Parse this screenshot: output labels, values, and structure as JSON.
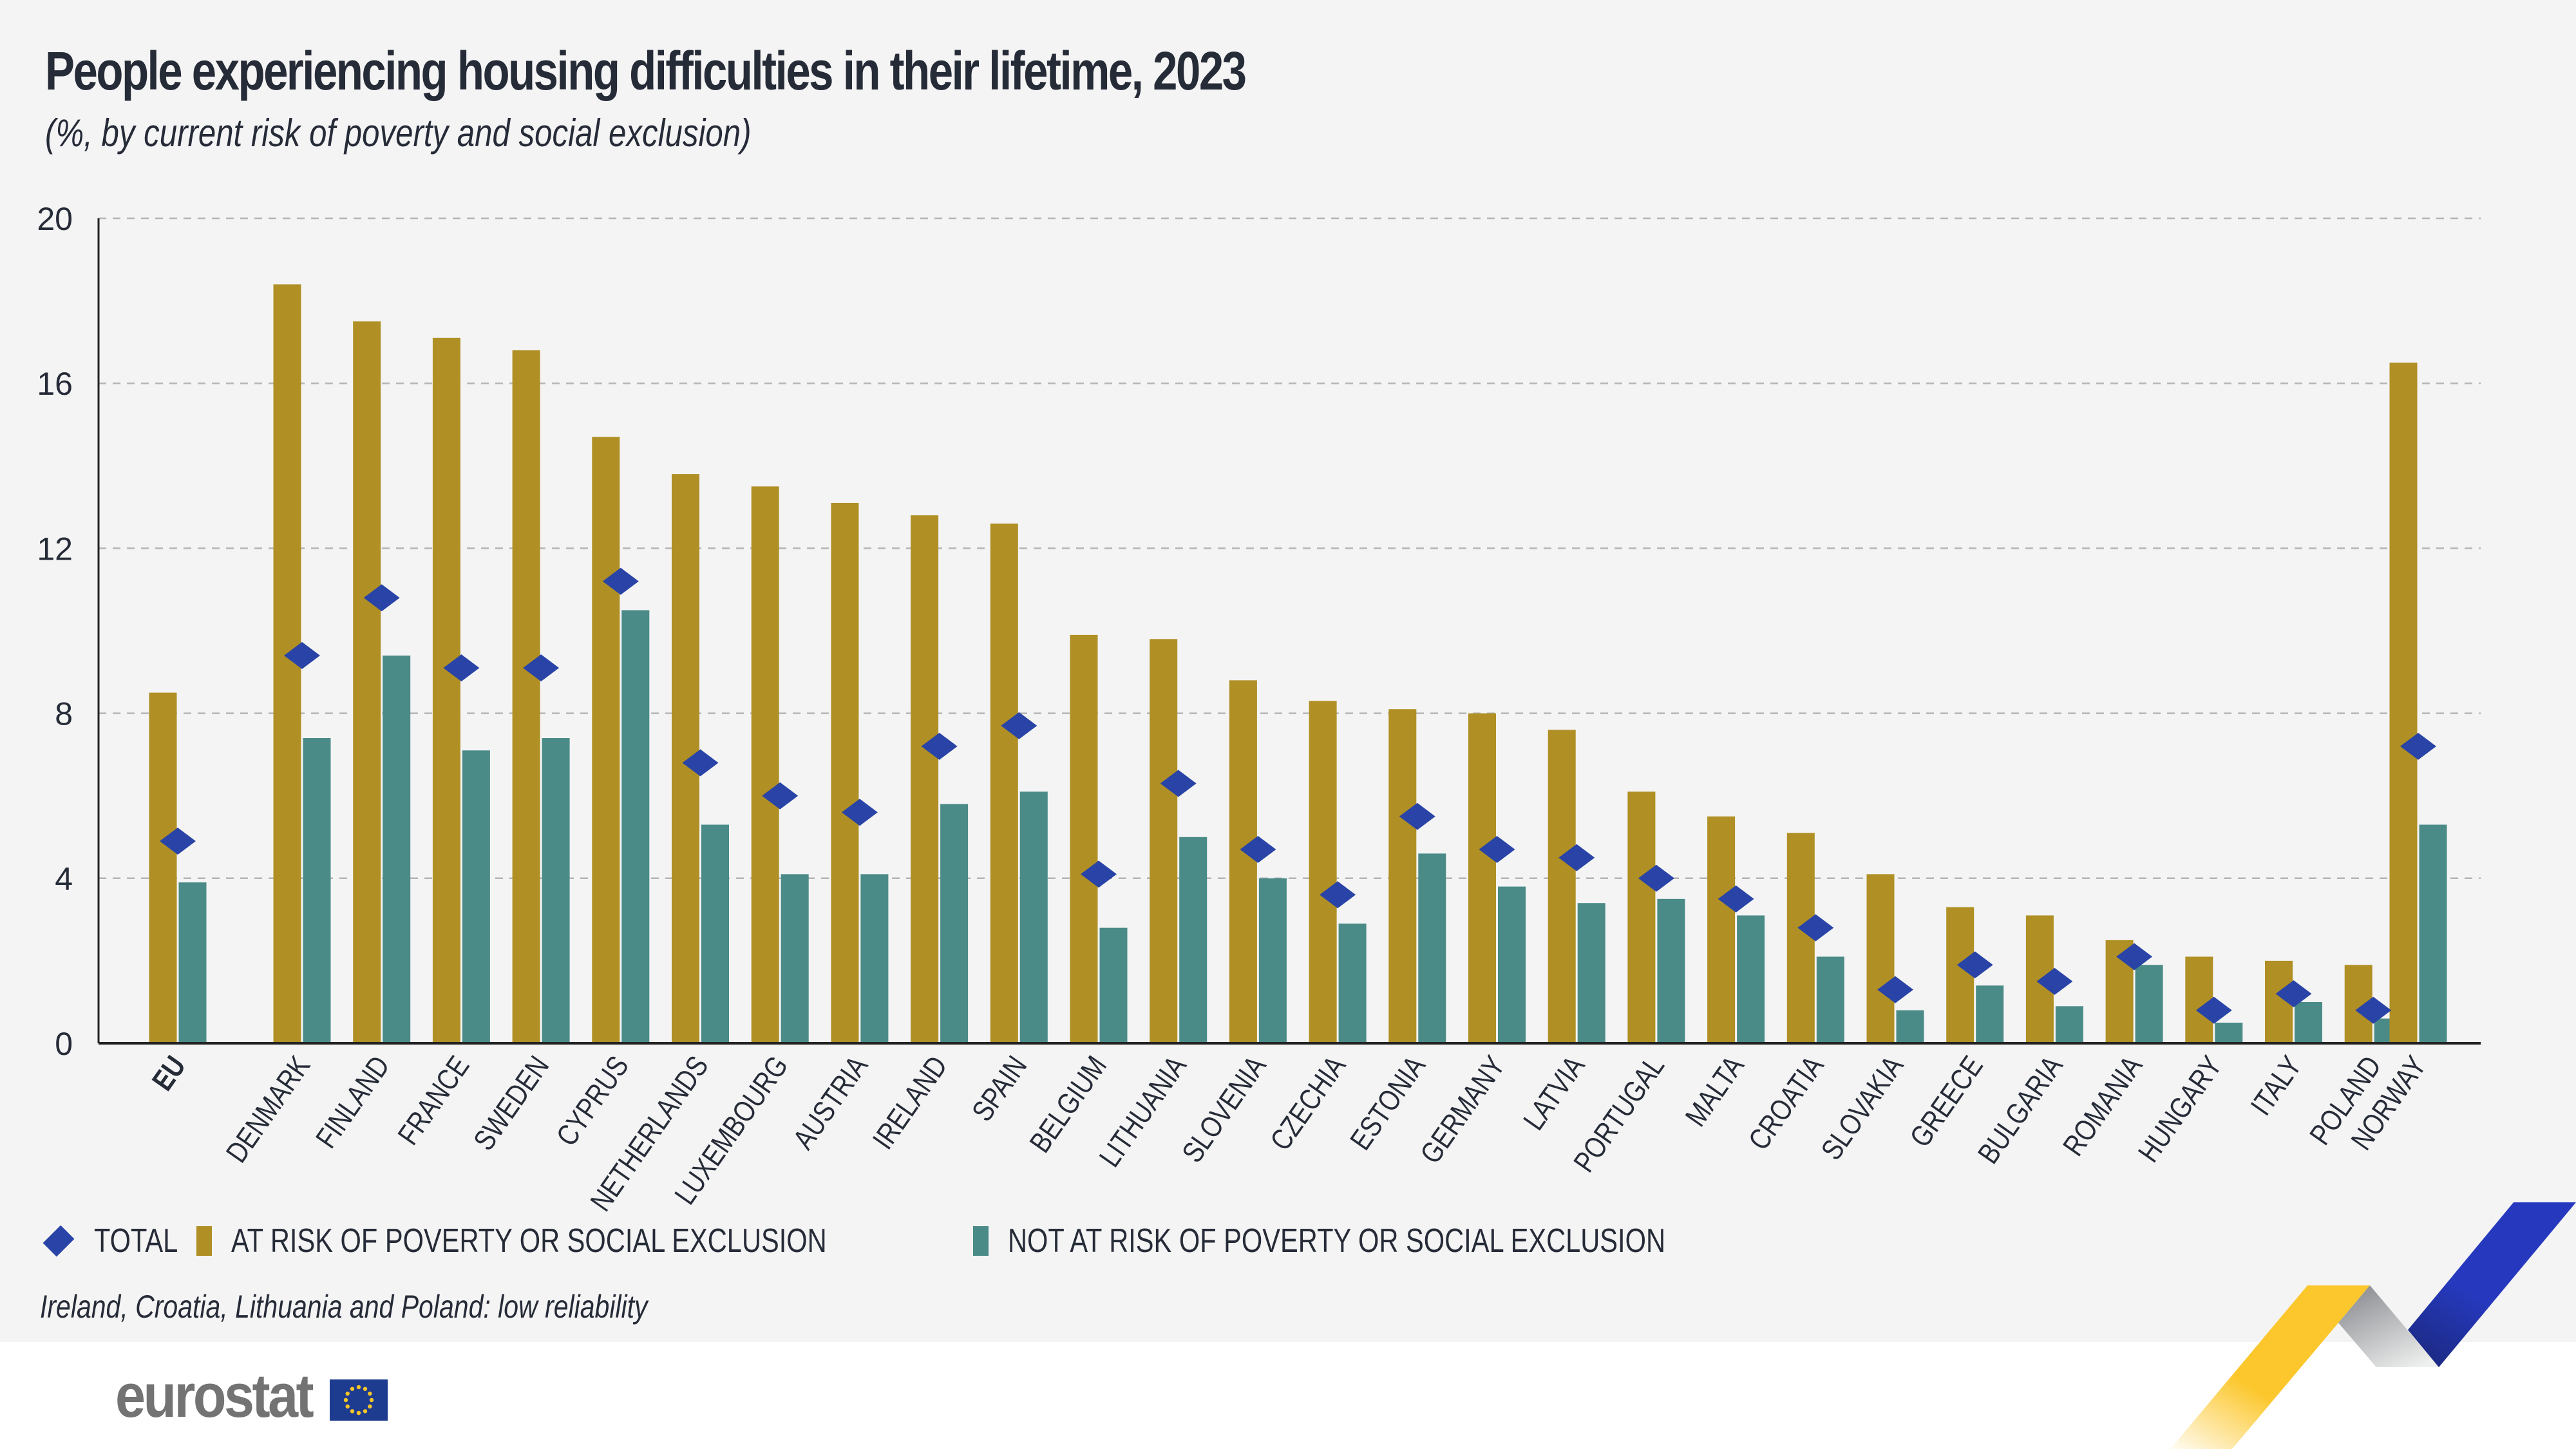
{
  "header": {
    "title": "People experiencing housing difficulties in their lifetime, 2023",
    "subtitle": "(%, by current risk of poverty and social exclusion)"
  },
  "legend": {
    "total": "TOTAL",
    "at_risk": "AT RISK OF POVERTY OR SOCIAL EXCLUSION",
    "not_at_risk": "NOT AT RISK OF POVERTY OR SOCIAL EXCLUSION"
  },
  "footnote": "Ireland, Croatia, Lithuania and Poland: low reliability",
  "logo": {
    "text": "eurostat",
    "flag_icon": "eu-flag-icon"
  },
  "colors": {
    "at_risk": "#b08f24",
    "not_at_risk": "#4a8b88",
    "total": "#2944a6",
    "text": "#262b38",
    "panel": "#f4f4f4",
    "grid": "#b5b5b5"
  },
  "chart_data": {
    "type": "bar",
    "title": "People experiencing housing difficulties in their lifetime, 2023",
    "subtitle": "(%, by current risk of poverty and social exclusion)",
    "xlabel": "",
    "ylabel": "%",
    "ylim": [
      0,
      20
    ],
    "yticks": [
      0,
      4,
      8,
      12,
      16,
      20
    ],
    "grid": true,
    "legend_position": "bottom-left",
    "categories": [
      "EU",
      "DENMARK",
      "FINLAND",
      "FRANCE",
      "SWEDEN",
      "CYPRUS",
      "NETHERLANDS",
      "LUXEMBOURG",
      "AUSTRIA",
      "IRELAND",
      "SPAIN",
      "BELGIUM",
      "LITHUANIA",
      "SLOVENIA",
      "CZECHIA",
      "ESTONIA",
      "GERMANY",
      "LATVIA",
      "PORTUGAL",
      "MALTA",
      "CROATIA",
      "SLOVAKIA",
      "GREECE",
      "BULGARIA",
      "ROMANIA",
      "HUNGARY",
      "ITALY",
      "POLAND",
      "NORWAY"
    ],
    "groups": {
      "EU": [
        "EU"
      ],
      "member_states": "DENMARK..POLAND",
      "non_member": [
        "NORWAY"
      ]
    },
    "series": [
      {
        "name": "AT RISK OF POVERTY OR SOCIAL EXCLUSION",
        "kind": "bar",
        "values": [
          8.5,
          18.4,
          17.5,
          17.1,
          16.8,
          14.7,
          13.8,
          13.5,
          13.1,
          12.8,
          12.6,
          9.9,
          9.8,
          8.8,
          8.3,
          8.1,
          8.0,
          7.6,
          6.1,
          5.5,
          5.1,
          4.1,
          3.3,
          3.1,
          2.5,
          2.1,
          2.0,
          1.9,
          16.5
        ]
      },
      {
        "name": "NOT AT RISK OF POVERTY OR SOCIAL EXCLUSION",
        "kind": "bar",
        "values": [
          3.9,
          7.4,
          9.4,
          7.1,
          7.4,
          10.5,
          5.3,
          4.1,
          4.1,
          5.8,
          6.1,
          2.8,
          5.0,
          4.0,
          2.9,
          4.6,
          3.8,
          3.4,
          3.5,
          3.1,
          2.1,
          0.8,
          1.4,
          0.9,
          1.9,
          0.5,
          1.0,
          0.6,
          5.3
        ]
      },
      {
        "name": "TOTAL",
        "kind": "marker-diamond",
        "values": [
          4.9,
          9.4,
          10.8,
          9.1,
          9.1,
          11.2,
          6.8,
          6.0,
          5.6,
          7.2,
          7.7,
          4.1,
          6.3,
          4.7,
          3.6,
          5.5,
          4.7,
          4.5,
          4.0,
          3.5,
          2.8,
          1.3,
          1.9,
          1.5,
          2.1,
          0.8,
          1.2,
          0.8,
          7.2
        ]
      }
    ]
  }
}
